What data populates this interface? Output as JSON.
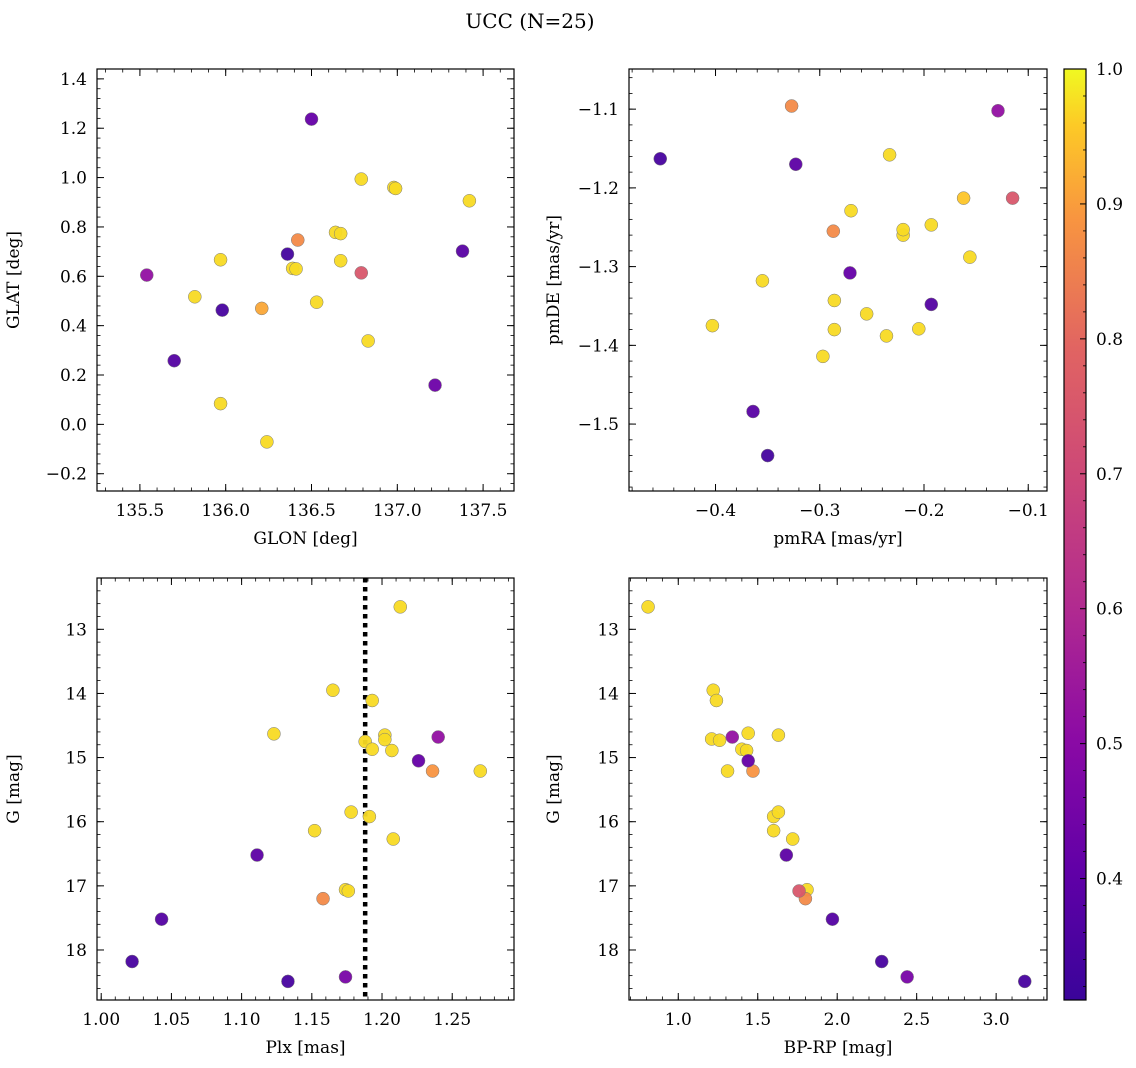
{
  "figure_title": "UCC (N=25)",
  "colorbar": {
    "min": 0.31,
    "max": 1.0,
    "ticks": [
      0.4,
      0.5,
      0.6,
      0.7,
      0.8,
      0.9,
      1.0
    ],
    "tick_labels": [
      "0.4",
      "0.5",
      "0.6",
      "0.7",
      "0.8",
      "0.9",
      "1.0"
    ],
    "colormap": "plasma"
  },
  "chart_data": [
    {
      "type": "scatter",
      "xlabel": "GLON [deg]",
      "ylabel": "GLAT [deg]",
      "xlim": [
        135.25,
        137.68
      ],
      "ylim": [
        -0.27,
        1.44
      ],
      "xticks": [
        135.5,
        136.0,
        136.5,
        137.0,
        137.5
      ],
      "xtick_labels": [
        "135.5",
        "136.0",
        "136.5",
        "137.0",
        "137.5"
      ],
      "yticks": [
        -0.2,
        0.0,
        0.2,
        0.4,
        0.6,
        0.8,
        1.0,
        1.2,
        1.4
      ],
      "ytick_labels": [
        "−0.2",
        "0.0",
        "0.2",
        "0.4",
        "0.6",
        "0.8",
        "1.0",
        "1.2",
        "1.4"
      ],
      "y_inverted": false,
      "points": [
        {
          "x": 135.54,
          "y": 0.605,
          "c": 0.52
        },
        {
          "x": 135.7,
          "y": 0.258,
          "c": 0.36
        },
        {
          "x": 135.82,
          "y": 0.517,
          "c": 0.97
        },
        {
          "x": 135.97,
          "y": 0.667,
          "c": 0.97
        },
        {
          "x": 135.98,
          "y": 0.463,
          "c": 0.33
        },
        {
          "x": 135.97,
          "y": 0.084,
          "c": 0.97
        },
        {
          "x": 136.21,
          "y": 0.47,
          "c": 0.92
        },
        {
          "x": 136.24,
          "y": -0.071,
          "c": 0.97
        },
        {
          "x": 136.36,
          "y": 0.69,
          "c": 0.32
        },
        {
          "x": 136.39,
          "y": 0.632,
          "c": 0.97
        },
        {
          "x": 136.41,
          "y": 0.63,
          "c": 0.97
        },
        {
          "x": 136.42,
          "y": 0.747,
          "c": 0.88
        },
        {
          "x": 136.5,
          "y": 1.237,
          "c": 0.4
        },
        {
          "x": 136.53,
          "y": 0.495,
          "c": 0.97
        },
        {
          "x": 136.64,
          "y": 0.778,
          "c": 0.97
        },
        {
          "x": 136.67,
          "y": 0.663,
          "c": 0.97
        },
        {
          "x": 136.67,
          "y": 0.773,
          "c": 0.97
        },
        {
          "x": 136.79,
          "y": 0.614,
          "c": 0.76
        },
        {
          "x": 136.79,
          "y": 0.994,
          "c": 0.97
        },
        {
          "x": 136.83,
          "y": 0.338,
          "c": 0.97
        },
        {
          "x": 136.98,
          "y": 0.96,
          "c": 0.97
        },
        {
          "x": 136.99,
          "y": 0.956,
          "c": 0.97
        },
        {
          "x": 137.22,
          "y": 0.159,
          "c": 0.42
        },
        {
          "x": 137.38,
          "y": 0.702,
          "c": 0.37
        },
        {
          "x": 137.42,
          "y": 0.906,
          "c": 0.97
        }
      ]
    },
    {
      "type": "scatter",
      "xlabel": "pmRA [mas/yr]",
      "ylabel": "pmDE [mas/yr]",
      "xlim": [
        -0.483,
        -0.082
      ],
      "ylim": [
        -1.585,
        -1.049
      ],
      "xticks": [
        -0.4,
        -0.3,
        -0.2,
        -0.1
      ],
      "xtick_labels": [
        "−0.4",
        "−0.3",
        "−0.2",
        "−0.1"
      ],
      "yticks": [
        -1.5,
        -1.4,
        -1.3,
        -1.2,
        -1.1
      ],
      "ytick_labels": [
        "−1.5",
        "−1.4",
        "−1.3",
        "−1.2",
        "−1.1"
      ],
      "y_inverted": false,
      "points": [
        {
          "x": -0.453,
          "y": -1.163,
          "c": 0.33
        },
        {
          "x": -0.403,
          "y": -1.375,
          "c": 0.97
        },
        {
          "x": -0.364,
          "y": -1.484,
          "c": 0.37
        },
        {
          "x": -0.355,
          "y": -1.318,
          "c": 0.97
        },
        {
          "x": -0.35,
          "y": -1.54,
          "c": 0.32
        },
        {
          "x": -0.327,
          "y": -1.096,
          "c": 0.88
        },
        {
          "x": -0.323,
          "y": -1.17,
          "c": 0.38
        },
        {
          "x": -0.297,
          "y": -1.414,
          "c": 0.97
        },
        {
          "x": -0.287,
          "y": -1.255,
          "c": 0.88
        },
        {
          "x": -0.286,
          "y": -1.38,
          "c": 0.97
        },
        {
          "x": -0.286,
          "y": -1.343,
          "c": 0.97
        },
        {
          "x": -0.271,
          "y": -1.308,
          "c": 0.4
        },
        {
          "x": -0.27,
          "y": -1.229,
          "c": 0.97
        },
        {
          "x": -0.255,
          "y": -1.36,
          "c": 0.97
        },
        {
          "x": -0.236,
          "y": -1.388,
          "c": 0.97
        },
        {
          "x": -0.233,
          "y": -1.158,
          "c": 0.97
        },
        {
          "x": -0.22,
          "y": -1.26,
          "c": 0.97
        },
        {
          "x": -0.22,
          "y": -1.253,
          "c": 0.97
        },
        {
          "x": -0.205,
          "y": -1.379,
          "c": 0.97
        },
        {
          "x": -0.193,
          "y": -1.348,
          "c": 0.36
        },
        {
          "x": -0.193,
          "y": -1.247,
          "c": 0.97
        },
        {
          "x": -0.162,
          "y": -1.213,
          "c": 0.95
        },
        {
          "x": -0.156,
          "y": -1.288,
          "c": 0.97
        },
        {
          "x": -0.129,
          "y": -1.102,
          "c": 0.52
        },
        {
          "x": -0.115,
          "y": -1.213,
          "c": 0.76
        }
      ]
    },
    {
      "type": "scatter",
      "xlabel": "Plx [mas]",
      "ylabel": "G [mag]",
      "xlim": [
        0.997,
        1.294
      ],
      "ylim": [
        18.78,
        12.2
      ],
      "xticks": [
        1.0,
        1.05,
        1.1,
        1.15,
        1.2,
        1.25
      ],
      "xtick_labels": [
        "1.00",
        "1.05",
        "1.10",
        "1.15",
        "1.20",
        "1.25"
      ],
      "yticks": [
        13,
        14,
        15,
        16,
        17,
        18
      ],
      "ytick_labels": [
        "13",
        "14",
        "15",
        "16",
        "17",
        "18"
      ],
      "y_inverted": true,
      "vline": {
        "x": 1.188,
        "style": "dotted"
      },
      "points": [
        {
          "x": 1.022,
          "y": 18.18,
          "c": 0.33
        },
        {
          "x": 1.043,
          "y": 17.52,
          "c": 0.36
        },
        {
          "x": 1.111,
          "y": 16.52,
          "c": 0.38
        },
        {
          "x": 1.123,
          "y": 14.63,
          "c": 0.97
        },
        {
          "x": 1.133,
          "y": 18.49,
          "c": 0.33
        },
        {
          "x": 1.152,
          "y": 16.14,
          "c": 0.97
        },
        {
          "x": 1.158,
          "y": 17.2,
          "c": 0.88
        },
        {
          "x": 1.165,
          "y": 13.95,
          "c": 0.97
        },
        {
          "x": 1.174,
          "y": 18.42,
          "c": 0.45
        },
        {
          "x": 1.174,
          "y": 17.06,
          "c": 0.97
        },
        {
          "x": 1.176,
          "y": 17.08,
          "c": 0.97
        },
        {
          "x": 1.178,
          "y": 15.85,
          "c": 0.97
        },
        {
          "x": 1.188,
          "y": 14.75,
          "c": 0.97
        },
        {
          "x": 1.191,
          "y": 15.92,
          "c": 0.97
        },
        {
          "x": 1.193,
          "y": 14.11,
          "c": 0.97
        },
        {
          "x": 1.193,
          "y": 14.87,
          "c": 0.97
        },
        {
          "x": 1.202,
          "y": 14.65,
          "c": 0.97
        },
        {
          "x": 1.202,
          "y": 14.72,
          "c": 0.97
        },
        {
          "x": 1.207,
          "y": 14.89,
          "c": 0.97
        },
        {
          "x": 1.208,
          "y": 16.27,
          "c": 0.97
        },
        {
          "x": 1.213,
          "y": 12.65,
          "c": 0.97
        },
        {
          "x": 1.226,
          "y": 15.05,
          "c": 0.4
        },
        {
          "x": 1.236,
          "y": 15.21,
          "c": 0.9
        },
        {
          "x": 1.24,
          "y": 14.68,
          "c": 0.52
        },
        {
          "x": 1.27,
          "y": 15.21,
          "c": 0.97
        }
      ]
    },
    {
      "type": "scatter",
      "xlabel": "BP-RP [mag]",
      "ylabel": "G [mag]",
      "xlim": [
        0.69,
        3.32
      ],
      "ylim": [
        18.78,
        12.2
      ],
      "xticks": [
        1.0,
        1.5,
        2.0,
        2.5,
        3.0
      ],
      "xtick_labels": [
        "1.0",
        "1.5",
        "2.0",
        "2.5",
        "3.0"
      ],
      "yticks": [
        13,
        14,
        15,
        16,
        17,
        18
      ],
      "ytick_labels": [
        "13",
        "14",
        "15",
        "16",
        "17",
        "18"
      ],
      "y_inverted": true,
      "points": [
        {
          "x": 0.81,
          "y": 12.65,
          "c": 0.97
        },
        {
          "x": 1.21,
          "y": 14.71,
          "c": 0.97
        },
        {
          "x": 1.22,
          "y": 13.95,
          "c": 0.97
        },
        {
          "x": 1.24,
          "y": 14.11,
          "c": 0.97
        },
        {
          "x": 1.26,
          "y": 14.73,
          "c": 0.97
        },
        {
          "x": 1.31,
          "y": 15.21,
          "c": 0.97
        },
        {
          "x": 1.34,
          "y": 14.68,
          "c": 0.52
        },
        {
          "x": 1.4,
          "y": 14.87,
          "c": 0.97
        },
        {
          "x": 1.43,
          "y": 14.89,
          "c": 0.97
        },
        {
          "x": 1.44,
          "y": 15.05,
          "c": 0.4
        },
        {
          "x": 1.44,
          "y": 14.62,
          "c": 0.97
        },
        {
          "x": 1.47,
          "y": 15.21,
          "c": 0.9
        },
        {
          "x": 1.6,
          "y": 15.92,
          "c": 0.97
        },
        {
          "x": 1.6,
          "y": 16.14,
          "c": 0.97
        },
        {
          "x": 1.63,
          "y": 15.85,
          "c": 0.97
        },
        {
          "x": 1.63,
          "y": 14.65,
          "c": 0.97
        },
        {
          "x": 1.68,
          "y": 16.52,
          "c": 0.38
        },
        {
          "x": 1.72,
          "y": 16.27,
          "c": 0.97
        },
        {
          "x": 1.76,
          "y": 17.08,
          "c": 0.76
        },
        {
          "x": 1.8,
          "y": 17.2,
          "c": 0.88
        },
        {
          "x": 1.81,
          "y": 17.06,
          "c": 0.97
        },
        {
          "x": 1.97,
          "y": 17.52,
          "c": 0.36
        },
        {
          "x": 2.28,
          "y": 18.18,
          "c": 0.33
        },
        {
          "x": 2.44,
          "y": 18.42,
          "c": 0.45
        },
        {
          "x": 3.18,
          "y": 18.49,
          "c": 0.33
        }
      ]
    }
  ]
}
